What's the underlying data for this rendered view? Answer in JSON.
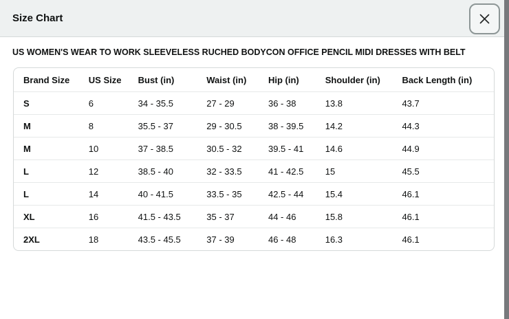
{
  "modal": {
    "title": "Size Chart"
  },
  "product_title": "US WOMEN'S WEAR TO WORK SLEEVELESS RUCHED BODYCON OFFICE PENCIL MIDI DRESSES WITH BELT",
  "table": {
    "columns": [
      "Brand Size",
      "US Size",
      "Bust (in)",
      "Waist (in)",
      "Hip (in)",
      "Shoulder (in)",
      "Back Length (in)"
    ],
    "rows": [
      [
        "S",
        "6",
        "34 - 35.5",
        "27 - 29",
        "36 - 38",
        "13.8",
        "43.7"
      ],
      [
        "M",
        "8",
        "35.5 - 37",
        "29 - 30.5",
        "38 - 39.5",
        "14.2",
        "44.3"
      ],
      [
        "M",
        "10",
        "37 - 38.5",
        "30.5 - 32",
        "39.5 - 41",
        "14.6",
        "44.9"
      ],
      [
        "L",
        "12",
        "38.5 - 40",
        "32 - 33.5",
        "41 - 42.5",
        "15",
        "45.5"
      ],
      [
        "L",
        "14",
        "40 - 41.5",
        "33.5 - 35",
        "42.5 - 44",
        "15.4",
        "46.1"
      ],
      [
        "XL",
        "16",
        "41.5 - 43.5",
        "35 - 37",
        "44 - 46",
        "15.8",
        "46.1"
      ],
      [
        "2XL",
        "18",
        "43.5 - 45.5",
        "37 - 39",
        "46 - 48",
        "16.3",
        "46.1"
      ]
    ]
  },
  "colors": {
    "text": "#0f1111",
    "header_bg": "#eef1f1",
    "divider": "#d5d9d9",
    "table_border": "#d5d9d9",
    "row_divider": "#e6e9e9",
    "overlay_edge": "#77797c"
  }
}
